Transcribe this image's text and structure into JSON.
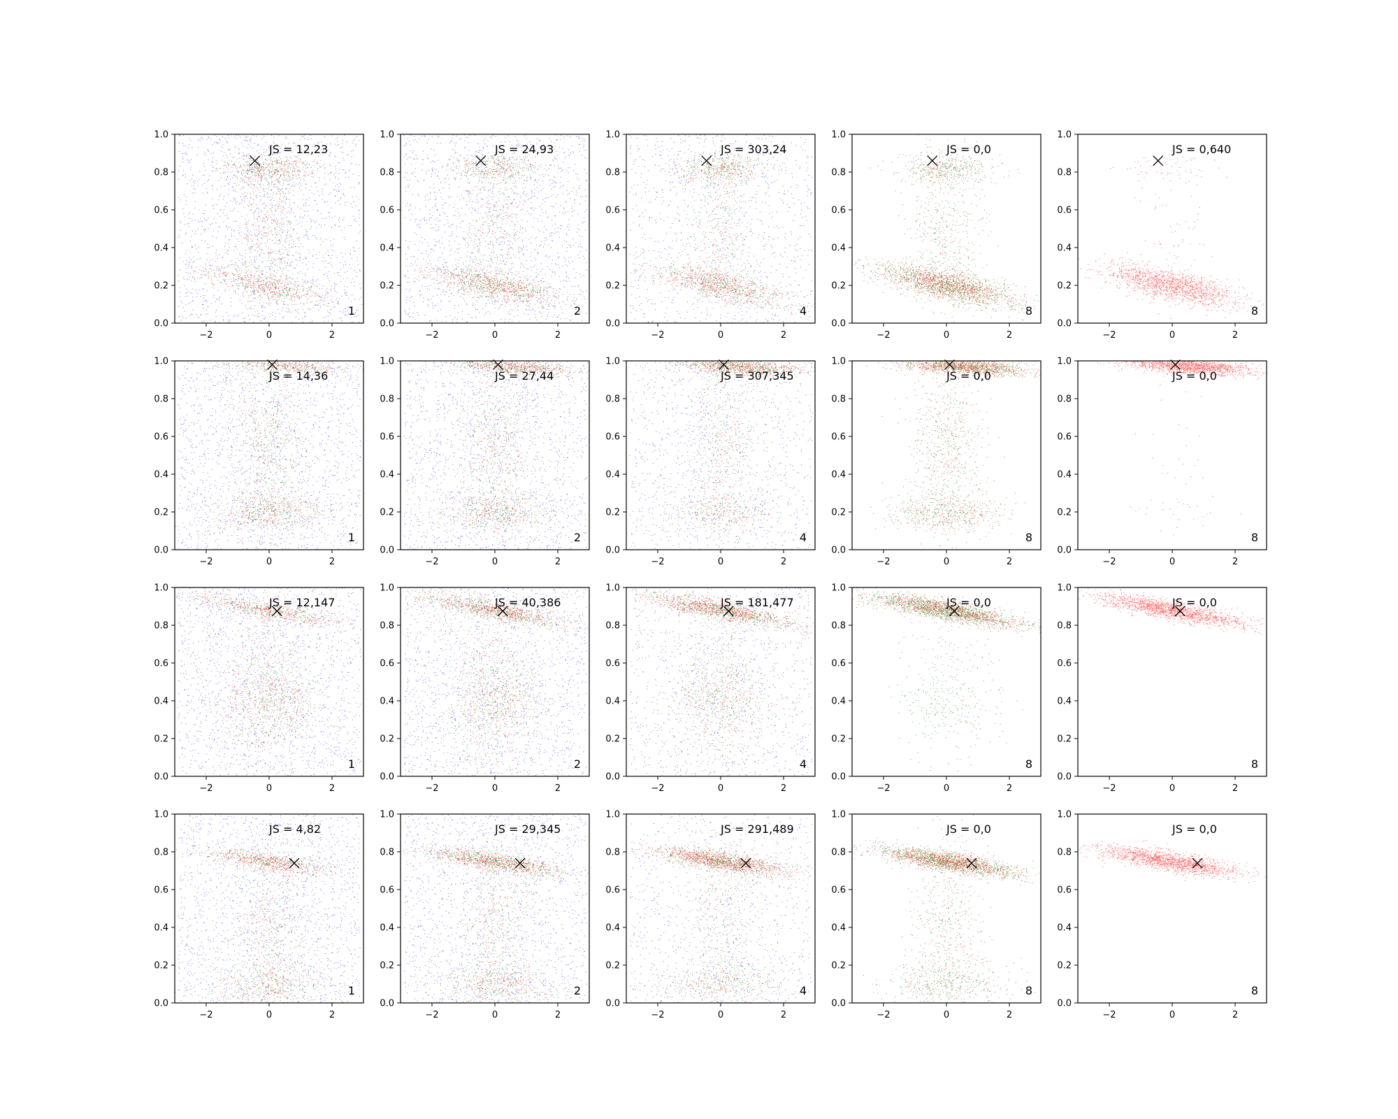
{
  "colors": {
    "low": "#0000ff",
    "mid": "#008000",
    "high": "#ff0000",
    "marker": "#000000"
  },
  "chart_data": {
    "type": "scatter",
    "title": "",
    "grid": false,
    "xlim": [
      -3,
      3
    ],
    "ylim": [
      0,
      1
    ],
    "xticks": [
      "−2",
      "0",
      "2"
    ],
    "yticks": [
      "0.0",
      "0.2",
      "0.4",
      "0.6",
      "0.8",
      "1.0"
    ],
    "rows": [
      {
        "marker": [
          -0.45,
          0.86
        ],
        "clusters": [
          {
            "x": 0.0,
            "y": 0.2,
            "sx": 1.1,
            "sy": 0.04,
            "slope": -0.035
          },
          {
            "x": 0.0,
            "y": 0.82,
            "sx": 0.75,
            "sy": 0.04,
            "slope": 0
          },
          {
            "x": 0.0,
            "y": 0.5,
            "sx": 0.6,
            "sy": 0.22,
            "slope": 0
          }
        ],
        "panels": [
          {
            "js": "JS = 12,23",
            "number": "1",
            "blue": 1500,
            "green": 900,
            "red": 900,
            "focus": 0.4
          },
          {
            "js": "JS = 24,93",
            "number": "2",
            "blue": 1400,
            "green": 1000,
            "red": 900,
            "focus": 0.6,
            "top": true
          },
          {
            "js": "JS = 303,24",
            "number": "4",
            "blue": 900,
            "green": 1000,
            "red": 1000,
            "focus": 0.55,
            "top": true
          },
          {
            "js": "JS = 0,0",
            "number": "8",
            "blue": 0,
            "green": 1600,
            "red": 1300,
            "focus": 0.75
          },
          {
            "js": "JS = 0,640",
            "number": "8",
            "blue": 0,
            "green": 0,
            "red": 1500,
            "focus": 0.9
          }
        ]
      },
      {
        "marker": [
          0.1,
          0.98
        ],
        "clusters": [
          {
            "x": 0.6,
            "y": 0.97,
            "sx": 1.0,
            "sy": 0.02,
            "slope": -0.01
          },
          {
            "x": 0.0,
            "y": 0.2,
            "sx": 0.9,
            "sy": 0.05,
            "slope": 0
          },
          {
            "x": 0.0,
            "y": 0.55,
            "sx": 0.55,
            "sy": 0.24,
            "slope": 0
          }
        ],
        "panels": [
          {
            "js": "JS = 14,36",
            "number": "1",
            "blue": 1600,
            "green": 900,
            "red": 800,
            "focus": 0.3
          },
          {
            "js": "JS = 27,44",
            "number": "2",
            "blue": 1500,
            "green": 1000,
            "red": 900,
            "focus": 0.4
          },
          {
            "js": "JS = 307,345",
            "number": "4",
            "blue": 1000,
            "green": 1000,
            "red": 900,
            "focus": 0.6
          },
          {
            "js": "JS = 0,0",
            "number": "8",
            "blue": 0,
            "green": 1400,
            "red": 1300,
            "focus": 0.6
          },
          {
            "js": "JS = 0,0",
            "number": "8",
            "blue": 0,
            "green": 0,
            "red": 1400,
            "focus": 0.95
          }
        ]
      },
      {
        "marker": [
          0.25,
          0.875
        ],
        "clusters": [
          {
            "x": 0.0,
            "y": 0.88,
            "sx": 1.2,
            "sy": 0.025,
            "slope": -0.03
          },
          {
            "x": 0.0,
            "y": 0.4,
            "sx": 0.8,
            "sy": 0.1,
            "slope": 0
          },
          {
            "x": 0.0,
            "y": 0.45,
            "sx": 0.7,
            "sy": 0.25,
            "slope": 0
          }
        ],
        "panels": [
          {
            "js": "JS = 12,147",
            "number": "1",
            "blue": 1600,
            "green": 900,
            "red": 900,
            "focus": 0.45
          },
          {
            "js": "JS = 40,386",
            "number": "2",
            "blue": 1500,
            "green": 1100,
            "red": 1000,
            "focus": 0.55
          },
          {
            "js": "JS = 181,477",
            "number": "4",
            "blue": 900,
            "green": 1200,
            "red": 1100,
            "focus": 0.65
          },
          {
            "js": "JS = 0,0",
            "number": "8",
            "blue": 0,
            "green": 1600,
            "red": 900,
            "focus": 0.97
          },
          {
            "js": "JS = 0,0",
            "number": "8",
            "blue": 0,
            "green": 0,
            "red": 1500,
            "focus": 1.0
          }
        ]
      },
      {
        "marker": [
          0.8,
          0.74
        ],
        "clusters": [
          {
            "x": 0.0,
            "y": 0.75,
            "sx": 1.1,
            "sy": 0.025,
            "slope": -0.025
          },
          {
            "x": 0.0,
            "y": 0.1,
            "sx": 1.0,
            "sy": 0.06,
            "slope": 0
          },
          {
            "x": 0.0,
            "y": 0.4,
            "sx": 0.6,
            "sy": 0.25,
            "slope": 0
          }
        ],
        "panels": [
          {
            "js": "JS = 4,82",
            "number": "1",
            "blue": 1600,
            "green": 900,
            "red": 900,
            "focus": 0.45
          },
          {
            "js": "JS = 29,345",
            "number": "2",
            "blue": 1400,
            "green": 1200,
            "red": 1100,
            "focus": 0.55
          },
          {
            "js": "JS = 291,489",
            "number": "4",
            "blue": 800,
            "green": 1200,
            "red": 1200,
            "focus": 0.7
          },
          {
            "js": "JS = 0,0",
            "number": "8",
            "blue": 0,
            "green": 1700,
            "red": 1300,
            "focus": 0.75
          },
          {
            "js": "JS = 0,0",
            "number": "8",
            "blue": 0,
            "green": 0,
            "red": 1500,
            "focus": 1.0
          }
        ]
      }
    ]
  }
}
